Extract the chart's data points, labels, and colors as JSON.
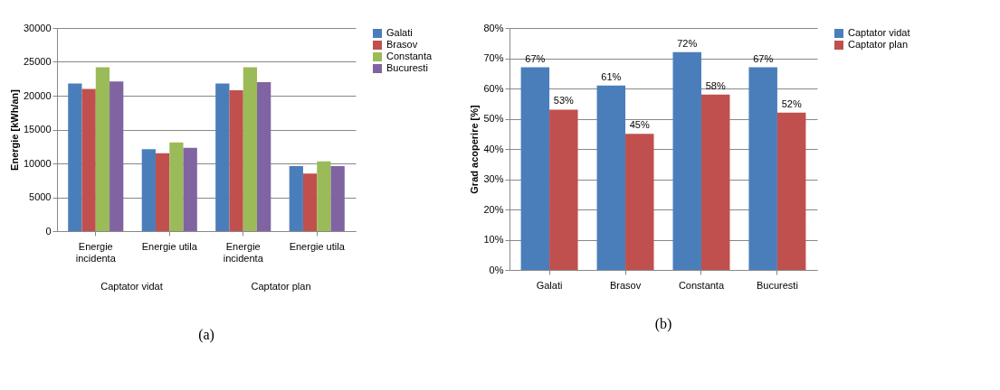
{
  "chart_data": [
    {
      "type": "bar",
      "ylabel": "Energie [kWh/an]",
      "categories": [
        "Energie incidenta",
        "Energie utila",
        "Energie incidenta",
        "Energie utila"
      ],
      "series": [
        {
          "name": "Galati",
          "color": "#4a7ebb",
          "values": [
            21800,
            12100,
            21800,
            9600
          ]
        },
        {
          "name": "Brasov",
          "color": "#c0504d",
          "values": [
            21000,
            11500,
            20800,
            8500
          ]
        },
        {
          "name": "Constanta",
          "color": "#9bbb59",
          "values": [
            24200,
            13100,
            24200,
            10300
          ]
        },
        {
          "name": "Bucuresti",
          "color": "#8064a2",
          "values": [
            22100,
            12300,
            22000,
            9600
          ]
        }
      ],
      "ylim": [
        0,
        30000
      ],
      "yticks": [
        0,
        5000,
        10000,
        15000,
        20000,
        25000,
        30000
      ],
      "grid": "y",
      "legend": "right",
      "annotations": [
        "Captator vidat",
        "Captator plan",
        "(a)"
      ]
    },
    {
      "type": "bar",
      "ylabel": "Grad acoperire [%]",
      "categories": [
        "Galati",
        "Brasov",
        "Constanta",
        "Bucuresti"
      ],
      "series": [
        {
          "name": "Captator vidat",
          "color": "#4a7ebb",
          "values": [
            67,
            61,
            72,
            67
          ],
          "value_labels": [
            "67%",
            "61%",
            "72%",
            "67%"
          ]
        },
        {
          "name": "Captator plan",
          "color": "#c0504d",
          "values": [
            53,
            45,
            58,
            52
          ],
          "value_labels": [
            "53%",
            "45%",
            "58%",
            "52%"
          ]
        }
      ],
      "ylim": [
        0,
        80
      ],
      "yticks": [
        {
          "value": 0,
          "label": "0%"
        },
        {
          "value": 10,
          "label": "10%"
        },
        {
          "value": 20,
          "label": "20%"
        },
        {
          "value": 30,
          "label": "30%"
        },
        {
          "value": 40,
          "label": "40%"
        },
        {
          "value": 50,
          "label": "50%"
        },
        {
          "value": 60,
          "label": "60%"
        },
        {
          "value": 70,
          "label": "70%"
        },
        {
          "value": 80,
          "label": "80%"
        }
      ],
      "grid": "y",
      "legend": "right",
      "annotations": [
        "(b)"
      ]
    }
  ]
}
